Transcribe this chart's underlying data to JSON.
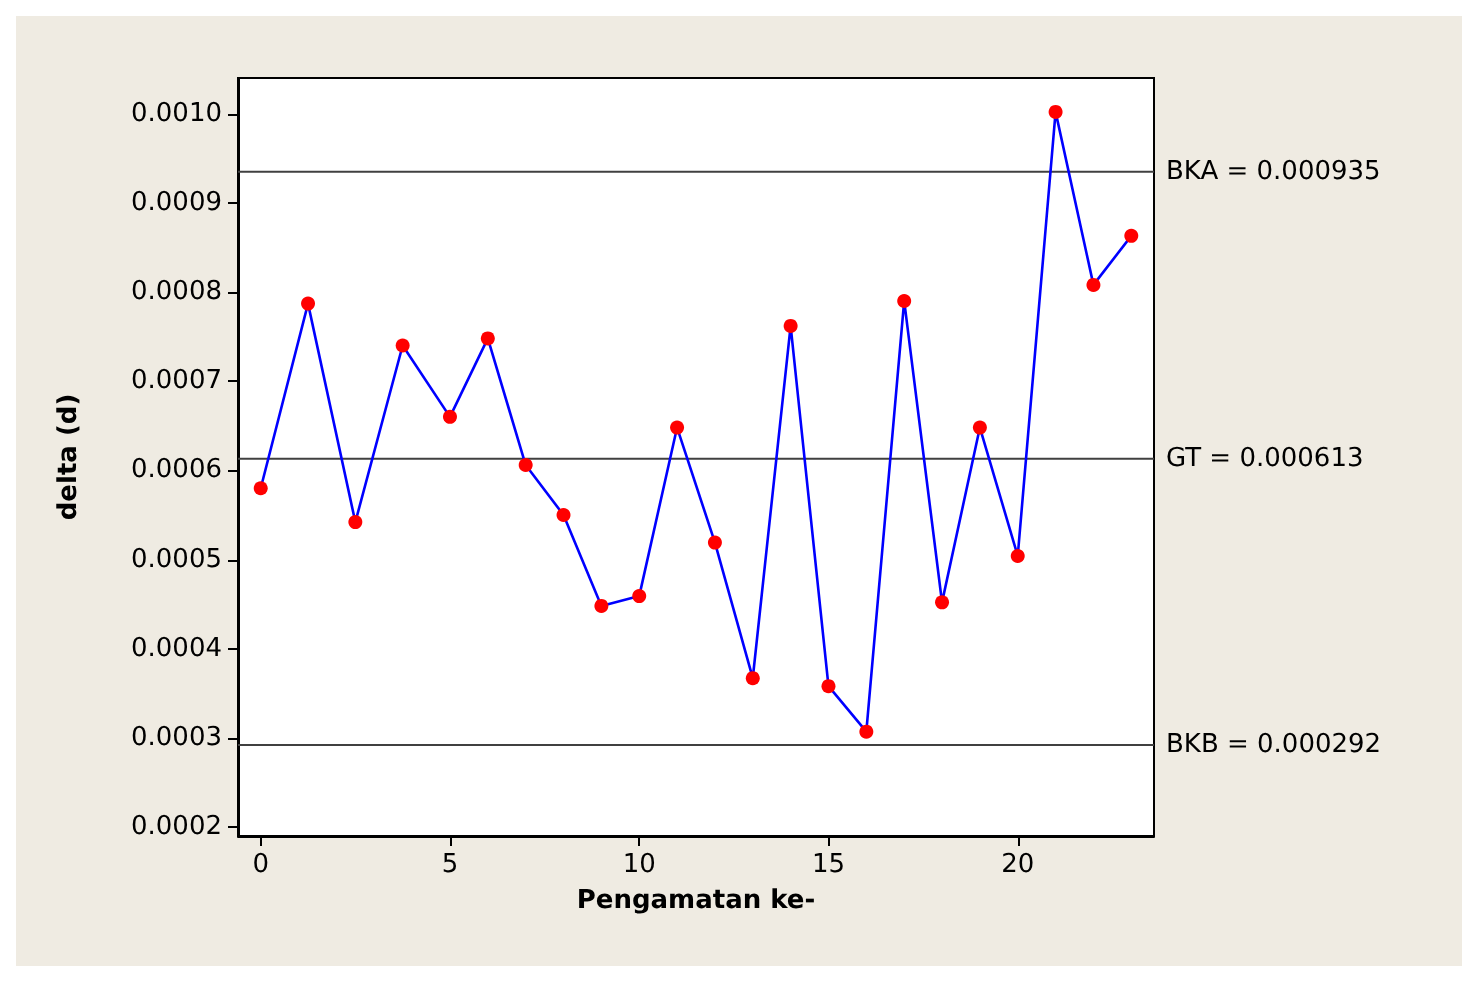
{
  "chart_data": {
    "type": "line",
    "xlabel": "Pengamatan ke-",
    "ylabel": "delta (d)",
    "x": [
      0,
      1.25,
      2.5,
      3.75,
      5,
      6,
      7,
      8,
      9,
      10,
      11,
      12,
      13,
      14,
      15,
      16,
      17,
      18,
      19,
      20,
      21,
      22,
      23
    ],
    "series": [
      {
        "color": "#0000ff",
        "colors": [
          "#ff0000",
          "#ff0000",
          "#ff0000",
          "#ff0000",
          "#ff0000",
          "#ff0000",
          "#ff0000",
          "#ff0000",
          "#ff0000",
          "#ff0000",
          "#ff0000",
          "#ff0000",
          "#ff0000",
          "#ff0000",
          "#ff0000",
          "#ff0000",
          "#ff0000",
          "#ff0000",
          "#ff0000",
          "#ff0000",
          "#ff0000",
          "#ff0000",
          "#ff0000"
        ],
        "values": [
          0.00058,
          0.000787,
          0.000542,
          0.00074,
          0.00066,
          0.000748,
          0.000606,
          0.00055,
          0.000448,
          0.000459,
          0.000648,
          0.000519,
          0.000367,
          0.000762,
          0.000358,
          0.000307,
          0.00079,
          0.000452,
          0.000648,
          0.000504,
          0.001002,
          0.000808,
          0.000863
        ]
      }
    ],
    "xlim": [
      -0.6,
      23.6
    ],
    "xticks": [
      0,
      5,
      10,
      15,
      20
    ],
    "ylim": [
      0.00019,
      0.00104
    ],
    "yticks": [
      {
        "value": 0.0002,
        "label": "0.0002"
      },
      {
        "value": 0.0003,
        "label": "0.0003"
      },
      {
        "value": 0.0004,
        "label": "0.0004"
      },
      {
        "value": 0.0005,
        "label": "0.0005"
      },
      {
        "value": 0.0006,
        "label": "0.0006"
      },
      {
        "value": 0.0007,
        "label": "0.0007"
      },
      {
        "value": 0.0008,
        "label": "0.0008"
      },
      {
        "value": 0.0009,
        "label": "0.0009"
      },
      {
        "value": 0.001,
        "label": "0.0010"
      }
    ],
    "ref_lines": [
      {
        "axis": "y",
        "value": 0.000935,
        "label": "BKA = 0.000935",
        "color": "#404040"
      },
      {
        "axis": "y",
        "value": 0.000613,
        "label": "GT = 0.000613",
        "color": "#404040"
      },
      {
        "axis": "y",
        "value": 0.000292,
        "label": "BKB = 0.000292",
        "color": "#404040"
      }
    ],
    "grid": false,
    "marker": "circle",
    "line_style": "solid"
  }
}
